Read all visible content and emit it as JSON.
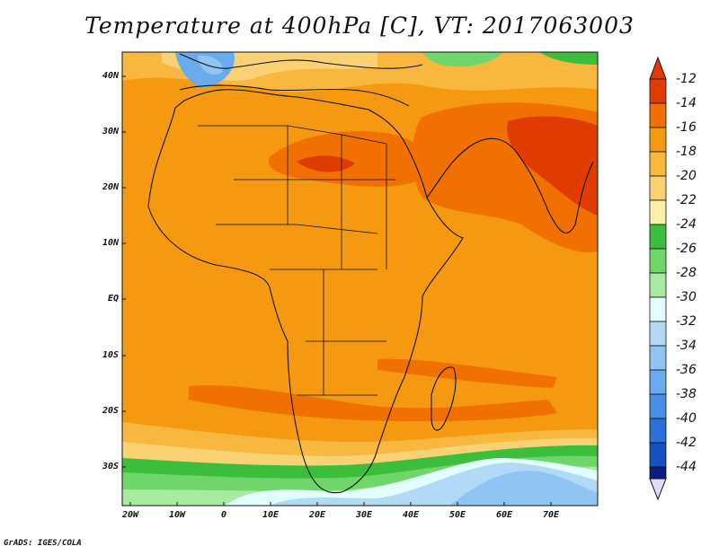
{
  "title": "Temperature at 400hPa [C], VT: 2017063003",
  "credit": "GrADS: IGES/COLA",
  "axes": {
    "lat_labels": [
      "40N",
      "30N",
      "20N",
      "10N",
      "EQ",
      "10S",
      "20S",
      "30S"
    ],
    "lon_labels": [
      "20W",
      "10W",
      "0",
      "10E",
      "20E",
      "30E",
      "40E",
      "50E",
      "60E",
      "70E"
    ]
  },
  "colorbar": {
    "labels": [
      "-12",
      "-14",
      "-16",
      "-18",
      "-20",
      "-22",
      "-24",
      "-26",
      "-28",
      "-30",
      "-32",
      "-34",
      "-36",
      "-38",
      "-40",
      "-42",
      "-44"
    ],
    "colors": [
      "#e03c00",
      "#f07000",
      "#f59a10",
      "#f8b840",
      "#fad274",
      "#fcf0a8",
      "#3cbe3c",
      "#6ed66a",
      "#a8eaa0",
      "#e2fefe",
      "#b2daf6",
      "#90c4f2",
      "#6aaaee",
      "#4890e6",
      "#2a70d6",
      "#1450c0",
      "#0a1e82",
      "#dcdcf8"
    ]
  },
  "legend_icons": [
    "arrow-up-icon",
    "arrow-down-icon"
  ]
}
